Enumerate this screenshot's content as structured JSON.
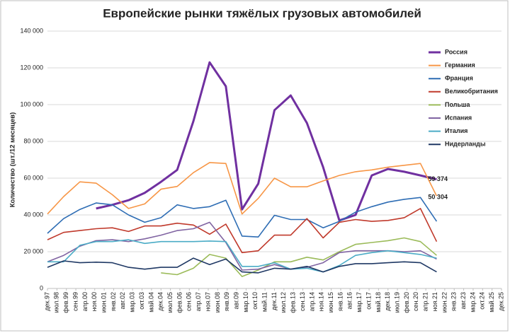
{
  "chart_data": {
    "type": "line",
    "title": "Европейские рынки тяжёлых грузовых автомобилей",
    "y_label": "Количество (шт./12 месяцев)",
    "x": [
      "1997-12",
      "1998-12",
      "1999-12",
      "2000-12",
      "2001-12",
      "2002-12",
      "2003-12",
      "2004-12",
      "2005-12",
      "2006-12",
      "2007-12",
      "2008-12",
      "2009-12",
      "2010-12",
      "2011-12",
      "2012-12",
      "2013-12",
      "2014-12",
      "2015-12",
      "2016-12",
      "2017-12",
      "2018-12",
      "2019-12",
      "2020-12",
      "2021-12"
    ],
    "xlim": [
      "1997-12",
      "2025-12"
    ],
    "xticks": [
      {
        "value": "1997-12",
        "label": "дек.97"
      },
      {
        "value": "1998-07",
        "label": "июл.98"
      },
      {
        "value": "1999-02",
        "label": "фев.99"
      },
      {
        "value": "1999-09",
        "label": "сен.99"
      },
      {
        "value": "2000-04",
        "label": "апр.00"
      },
      {
        "value": "2000-11",
        "label": "ноя.00"
      },
      {
        "value": "2001-06",
        "label": "июн.01"
      },
      {
        "value": "2002-01",
        "label": "янв.02"
      },
      {
        "value": "2002-08",
        "label": "авг.02"
      },
      {
        "value": "2003-03",
        "label": "мар.03"
      },
      {
        "value": "2003-10",
        "label": "окт.03"
      },
      {
        "value": "2004-05",
        "label": "май.04"
      },
      {
        "value": "2004-12",
        "label": "дек.04"
      },
      {
        "value": "2005-07",
        "label": "июл.05"
      },
      {
        "value": "2006-02",
        "label": "фев.06"
      },
      {
        "value": "2006-09",
        "label": "сен.06"
      },
      {
        "value": "2007-04",
        "label": "апр.07"
      },
      {
        "value": "2007-11",
        "label": "ноя.07"
      },
      {
        "value": "2008-06",
        "label": "июн.08"
      },
      {
        "value": "2009-01",
        "label": "янв.09"
      },
      {
        "value": "2009-08",
        "label": "авг.09"
      },
      {
        "value": "2010-03",
        "label": "мар.10"
      },
      {
        "value": "2010-10",
        "label": "окт.10"
      },
      {
        "value": "2011-05",
        "label": "май.11"
      },
      {
        "value": "2011-12",
        "label": "дек.11"
      },
      {
        "value": "2012-07",
        "label": "июл.12"
      },
      {
        "value": "2013-02",
        "label": "фев.13"
      },
      {
        "value": "2013-09",
        "label": "сен.13"
      },
      {
        "value": "2014-04",
        "label": "апр.14"
      },
      {
        "value": "2014-11",
        "label": "ноя.14"
      },
      {
        "value": "2015-06",
        "label": "июн.15"
      },
      {
        "value": "2016-01",
        "label": "янв.16"
      },
      {
        "value": "2016-08",
        "label": "авг.16"
      },
      {
        "value": "2017-03",
        "label": "мар.17"
      },
      {
        "value": "2017-10",
        "label": "окт.17"
      },
      {
        "value": "2018-05",
        "label": "май.18"
      },
      {
        "value": "2018-12",
        "label": "дек.18"
      },
      {
        "value": "2019-07",
        "label": "июл.19"
      },
      {
        "value": "2020-02",
        "label": "фев.20"
      },
      {
        "value": "2020-09",
        "label": "сен.20"
      },
      {
        "value": "2021-04",
        "label": "апр.21"
      },
      {
        "value": "2021-11",
        "label": "ноя.21"
      },
      {
        "value": "2022-06",
        "label": "июн.22"
      },
      {
        "value": "2023-01",
        "label": "янв.23"
      },
      {
        "value": "2023-08",
        "label": "авг.23"
      },
      {
        "value": "2024-03",
        "label": "мар.24"
      },
      {
        "value": "2024-10",
        "label": "окт.24"
      },
      {
        "value": "2025-05",
        "label": "май.25"
      },
      {
        "value": "2025-12",
        "label": "дек.25"
      }
    ],
    "ylim": [
      0,
      140000
    ],
    "yticks": [
      0,
      {
        "value": 20000,
        "label": "20 000"
      },
      {
        "value": 40000,
        "label": "40 000"
      },
      {
        "value": 60000,
        "label": "60 000"
      },
      {
        "value": 80000,
        "label": "80 000"
      },
      {
        "value": 100000,
        "label": "100 000"
      },
      {
        "value": 120000,
        "label": "120 000"
      },
      {
        "value": 140000,
        "label": "140 000"
      }
    ],
    "grid": true,
    "legend": "right",
    "series": [
      {
        "name": "Россия",
        "color": "#7030a0",
        "width": 3,
        "values": [
          null,
          null,
          null,
          43500,
          45500,
          48000,
          52000,
          58000,
          64500,
          91000,
          123000,
          110000,
          43000,
          57000,
          97000,
          105000,
          90000,
          66000,
          37000,
          40000,
          61500,
          65000,
          63500,
          61500,
          59374
        ],
        "value_labels": [
          null,
          null,
          null,
          null,
          null,
          null,
          null,
          null,
          null,
          null,
          null,
          null,
          null,
          null,
          null,
          null,
          null,
          null,
          null,
          null,
          null,
          null,
          null,
          null,
          "59 374"
        ]
      },
      {
        "name": "Германия",
        "color": "#f79646",
        "width": 1.6,
        "values": [
          40500,
          50000,
          58000,
          57300,
          51000,
          43500,
          46000,
          54000,
          55500,
          63000,
          68500,
          68000,
          40500,
          49000,
          60000,
          55300,
          55300,
          58500,
          61500,
          63500,
          64500,
          66000,
          67000,
          68000,
          50304
        ],
        "value_labels": [
          null,
          null,
          null,
          null,
          null,
          null,
          null,
          null,
          null,
          null,
          null,
          null,
          null,
          null,
          null,
          null,
          null,
          null,
          null,
          null,
          null,
          null,
          null,
          null,
          "50 304"
        ]
      },
      {
        "name": "Франция",
        "color": "#2e6db4",
        "width": 1.6,
        "values": [
          30000,
          38000,
          43000,
          46500,
          45500,
          40000,
          36000,
          38500,
          45500,
          43500,
          44500,
          48000,
          28500,
          28000,
          39800,
          37500,
          37500,
          33000,
          36500,
          41500,
          44500,
          47000,
          48500,
          49500,
          36500
        ]
      },
      {
        "name": "Великобритания",
        "color": "#c0392b",
        "width": 1.6,
        "values": [
          26500,
          30500,
          31500,
          32500,
          33000,
          31000,
          34000,
          34000,
          35500,
          34500,
          29500,
          35000,
          19500,
          20500,
          29000,
          29000,
          38000,
          27500,
          36000,
          37500,
          36500,
          37000,
          38500,
          43500,
          25500
        ]
      },
      {
        "name": "Польша",
        "color": "#9bbb59",
        "width": 1.6,
        "values": [
          null,
          null,
          null,
          null,
          null,
          null,
          null,
          8500,
          7500,
          11000,
          18500,
          16500,
          6500,
          10000,
          14500,
          14500,
          17000,
          15500,
          20000,
          24000,
          25000,
          26000,
          27500,
          25500,
          18000
        ]
      },
      {
        "name": "Испания",
        "color": "#8064a2",
        "width": 1.6,
        "values": [
          14500,
          18000,
          23000,
          26000,
          26500,
          25500,
          27000,
          29000,
          31500,
          32500,
          36000,
          25000,
          10000,
          10500,
          13000,
          10500,
          11500,
          14000,
          19500,
          20500,
          20500,
          20500,
          20000,
          20500,
          16000
        ]
      },
      {
        "name": "Италия",
        "color": "#4bacc6",
        "width": 1.6,
        "values": [
          14500,
          14500,
          23500,
          25500,
          25500,
          26500,
          24500,
          25500,
          25500,
          25500,
          25800,
          25500,
          12000,
          12000,
          14000,
          10500,
          11000,
          9000,
          12500,
          18000,
          19500,
          20500,
          19500,
          18500,
          16500
        ]
      },
      {
        "name": "Нидерланды",
        "color": "#1f3864",
        "width": 1.6,
        "values": [
          11500,
          15000,
          14000,
          14300,
          14000,
          11500,
          10500,
          11500,
          11500,
          16500,
          13000,
          16000,
          9000,
          8500,
          11000,
          10500,
          12000,
          9000,
          12000,
          13500,
          13500,
          14000,
          14500,
          14000,
          9000
        ]
      }
    ]
  }
}
